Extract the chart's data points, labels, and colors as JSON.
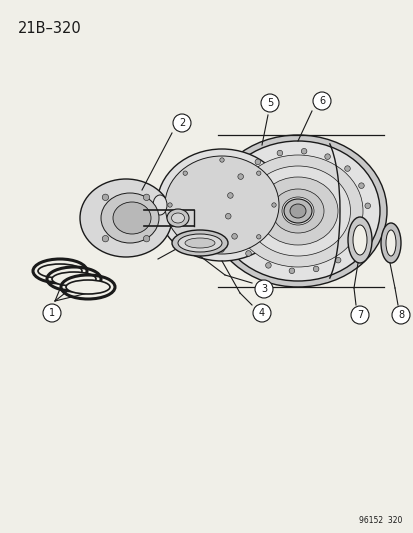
{
  "title": "21B–320",
  "watermark": "96152  320",
  "bg_color": "#f0efe8",
  "line_color": "#1a1a1a",
  "parts": [
    1,
    2,
    3,
    4,
    5,
    6,
    7,
    8
  ],
  "fig_width": 4.14,
  "fig_height": 5.33,
  "dpi": 100
}
